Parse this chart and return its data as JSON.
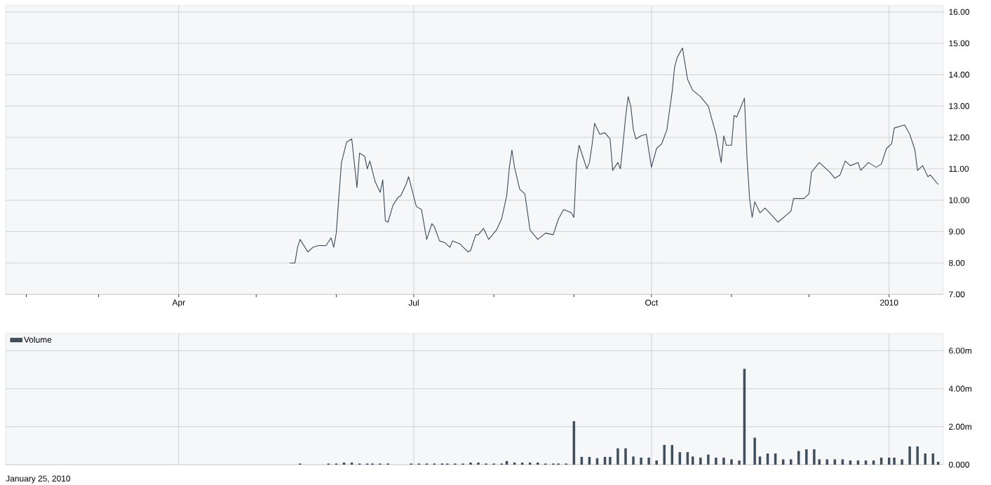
{
  "chart_data": [
    {
      "type": "line",
      "color": "#3b4a5a",
      "grid": true,
      "xlim": [
        "2009-01-24",
        "2010-01-22"
      ],
      "ylim": [
        7,
        16.2
      ],
      "xticks": [
        {
          "value": "2009-02",
          "label": null
        },
        {
          "value": "2009-03",
          "label": null
        },
        {
          "value": "2009-04",
          "label": "Apr"
        },
        {
          "value": "2009-05",
          "label": null
        },
        {
          "value": "2009-06",
          "label": null
        },
        {
          "value": "2009-07",
          "label": "Jul"
        },
        {
          "value": "2009-08",
          "label": null
        },
        {
          "value": "2009-09",
          "label": null
        },
        {
          "value": "2009-10",
          "label": "Oct"
        },
        {
          "value": "2009-11",
          "label": null
        },
        {
          "value": "2009-12",
          "label": null
        },
        {
          "value": "2010-01",
          "label": "2010"
        }
      ],
      "yticks": [
        {
          "value": 7,
          "label": "7.00"
        },
        {
          "value": 8,
          "label": "8.00"
        },
        {
          "value": 9,
          "label": "9.00"
        },
        {
          "value": 10,
          "label": "10.00"
        },
        {
          "value": 11,
          "label": "11.00"
        },
        {
          "value": 12,
          "label": "12.00"
        },
        {
          "value": 13,
          "label": "13.00"
        },
        {
          "value": 14,
          "label": "14.00"
        },
        {
          "value": 15,
          "label": "15.00"
        },
        {
          "value": 16,
          "label": "16.00"
        }
      ],
      "x": [
        "2009-05-14",
        "2009-05-16",
        "2009-05-17",
        "2009-05-18",
        "2009-05-21",
        "2009-05-23",
        "2009-05-25",
        "2009-05-28",
        "2009-05-30",
        "2009-05-31",
        "2009-06-01",
        "2009-06-02",
        "2009-06-03",
        "2009-06-05",
        "2009-06-06",
        "2009-06-07",
        "2009-06-09",
        "2009-06-10",
        "2009-06-12",
        "2009-06-13",
        "2009-06-14",
        "2009-06-16",
        "2009-06-18",
        "2009-06-19",
        "2009-06-20",
        "2009-06-21",
        "2009-06-23",
        "2009-06-25",
        "2009-06-26",
        "2009-06-28",
        "2009-06-29",
        "2009-07-02",
        "2009-07-04",
        "2009-07-06",
        "2009-07-08",
        "2009-07-09",
        "2009-07-11",
        "2009-07-13",
        "2009-07-15",
        "2009-07-16",
        "2009-07-19",
        "2009-07-22",
        "2009-07-23",
        "2009-07-25",
        "2009-07-26",
        "2009-07-28",
        "2009-07-30",
        "2009-08-02",
        "2009-08-04",
        "2009-08-06",
        "2009-08-07",
        "2009-08-08",
        "2009-08-09",
        "2009-08-11",
        "2009-08-13",
        "2009-08-15",
        "2009-08-16",
        "2009-08-18",
        "2009-08-21",
        "2009-08-24",
        "2009-08-26",
        "2009-08-28",
        "2009-08-31",
        "2009-09-01",
        "2009-09-02",
        "2009-09-03",
        "2009-09-04",
        "2009-09-06",
        "2009-09-07",
        "2009-09-08",
        "2009-09-09",
        "2009-09-11",
        "2009-09-13",
        "2009-09-15",
        "2009-09-16",
        "2009-09-18",
        "2009-09-19",
        "2009-09-20",
        "2009-09-21",
        "2009-09-22",
        "2009-09-23",
        "2009-09-24",
        "2009-09-25",
        "2009-09-27",
        "2009-09-29",
        "2009-10-01",
        "2009-10-03",
        "2009-10-05",
        "2009-10-07",
        "2009-10-09",
        "2009-10-10",
        "2009-10-11",
        "2009-10-13",
        "2009-10-15",
        "2009-10-17",
        "2009-10-20",
        "2009-10-23",
        "2009-10-26",
        "2009-10-28",
        "2009-10-29",
        "2009-10-30",
        "2009-11-01",
        "2009-11-02",
        "2009-11-03",
        "2009-11-05",
        "2009-11-06",
        "2009-11-07",
        "2009-11-08",
        "2009-11-09",
        "2009-11-10",
        "2009-11-12",
        "2009-11-14",
        "2009-11-19",
        "2009-11-24",
        "2009-11-25",
        "2009-11-29",
        "2009-12-01",
        "2009-12-02",
        "2009-12-05",
        "2009-12-09",
        "2009-12-11",
        "2009-12-13",
        "2009-12-15",
        "2009-12-17",
        "2009-12-20",
        "2009-12-21",
        "2009-12-24",
        "2009-12-27",
        "2009-12-29",
        "2009-12-31",
        "2010-01-02",
        "2010-01-03",
        "2010-01-07",
        "2010-01-09",
        "2010-01-11",
        "2010-01-12",
        "2010-01-14",
        "2010-01-16",
        "2010-01-17",
        "2010-01-20"
      ],
      "values": [
        8.0,
        8.0,
        8.5,
        8.75,
        8.35,
        8.5,
        8.55,
        8.55,
        8.8,
        8.5,
        8.95,
        10.1,
        11.2,
        11.85,
        11.9,
        11.95,
        10.4,
        11.5,
        11.4,
        11.0,
        11.25,
        10.6,
        10.25,
        10.65,
        9.35,
        9.3,
        9.85,
        10.1,
        10.15,
        10.5,
        10.75,
        9.8,
        9.7,
        8.75,
        9.25,
        9.15,
        8.7,
        8.65,
        8.5,
        8.7,
        8.6,
        8.35,
        8.4,
        8.9,
        8.9,
        9.1,
        8.75,
        9.05,
        9.4,
        10.15,
        11.05,
        11.6,
        11.05,
        10.35,
        10.2,
        9.05,
        8.95,
        8.75,
        8.95,
        8.9,
        9.4,
        9.7,
        9.6,
        9.45,
        11.2,
        11.75,
        11.5,
        11.0,
        11.2,
        11.75,
        12.45,
        12.1,
        12.15,
        11.95,
        10.95,
        11.2,
        11.0,
        11.8,
        12.65,
        13.3,
        13.0,
        12.25,
        11.95,
        12.05,
        12.1,
        11.05,
        11.65,
        11.8,
        12.25,
        13.45,
        14.25,
        14.55,
        14.85,
        13.85,
        13.5,
        13.3,
        13.0,
        12.1,
        11.2,
        12.05,
        11.75,
        11.75,
        12.7,
        12.65,
        13.05,
        13.25,
        11.35,
        10.05,
        9.45,
        9.95,
        9.6,
        9.75,
        9.3,
        9.65,
        10.05,
        10.05,
        10.2,
        10.9,
        11.2,
        10.9,
        10.7,
        10.8,
        11.25,
        11.1,
        11.2,
        10.95,
        11.2,
        11.05,
        11.15,
        11.65,
        11.8,
        12.3,
        12.4,
        12.1,
        11.6,
        10.95,
        11.1,
        10.75,
        10.8,
        10.5
      ]
    },
    {
      "type": "bar",
      "grid": true,
      "legend": "top left",
      "tick_labels": "y",
      "xlim": [
        "2009-01-24",
        "2010-01-22"
      ],
      "ylim": [
        0,
        6.9
      ],
      "xticks": [
        {
          "value": "2009-04",
          "label": null
        },
        {
          "value": "2009-07",
          "label": null
        },
        {
          "value": "2009-10",
          "label": null
        },
        {
          "value": "2010-01",
          "label": null
        }
      ],
      "yticks": [
        {
          "value": 0,
          "label": "0.000"
        },
        {
          "value": 2,
          "label": "2.00m"
        },
        {
          "value": 4,
          "label": "4.00m"
        },
        {
          "value": 6,
          "label": "6.00m"
        }
      ],
      "annotations": [
        "January 25, 2010"
      ],
      "x": [
        "2009-05-18",
        "2009-05-29",
        "2009-06-01",
        "2009-06-04",
        "2009-06-07",
        "2009-06-10",
        "2009-06-13",
        "2009-06-15",
        "2009-06-18",
        "2009-06-21",
        "2009-06-30",
        "2009-07-03",
        "2009-07-06",
        "2009-07-09",
        "2009-07-12",
        "2009-07-14",
        "2009-07-17",
        "2009-07-20",
        "2009-07-23",
        "2009-07-26",
        "2009-07-29",
        "2009-08-01",
        "2009-08-04",
        "2009-08-06",
        "2009-08-09",
        "2009-08-12",
        "2009-08-15",
        "2009-08-18",
        "2009-08-21",
        "2009-08-24",
        "2009-08-26",
        "2009-08-29",
        "2009-09-01",
        "2009-09-04",
        "2009-09-07",
        "2009-09-10",
        "2009-09-13",
        "2009-09-15",
        "2009-09-18",
        "2009-09-21",
        "2009-09-24",
        "2009-09-27",
        "2009-09-30",
        "2009-10-03",
        "2009-10-06",
        "2009-10-09",
        "2009-10-12",
        "2009-10-15",
        "2009-10-17",
        "2009-10-20",
        "2009-10-23",
        "2009-10-26",
        "2009-10-29",
        "2009-11-01",
        "2009-11-04",
        "2009-11-06",
        "2009-11-10",
        "2009-11-12",
        "2009-11-15",
        "2009-11-18",
        "2009-11-21",
        "2009-11-24",
        "2009-11-27",
        "2009-11-30",
        "2009-12-03",
        "2009-12-05",
        "2009-12-08",
        "2009-12-11",
        "2009-12-14",
        "2009-12-17",
        "2009-12-20",
        "2009-12-23",
        "2009-12-26",
        "2009-12-29",
        "2010-01-01",
        "2010-01-03",
        "2010-01-06",
        "2010-01-09",
        "2010-01-12",
        "2010-01-15",
        "2010-01-18",
        "2010-01-20"
      ],
      "series": [
        {
          "name": "Volume",
          "color": "#3f4f5e",
          "values": [
            0.06,
            0.06,
            0.06,
            0.11,
            0.11,
            0.06,
            0.06,
            0.06,
            0.06,
            0.06,
            0.06,
            0.06,
            0.06,
            0.06,
            0.06,
            0.06,
            0.06,
            0.06,
            0.11,
            0.11,
            0.06,
            0.06,
            0.06,
            0.19,
            0.11,
            0.11,
            0.11,
            0.11,
            0.06,
            0.06,
            0.06,
            0.06,
            2.29,
            0.41,
            0.41,
            0.34,
            0.41,
            0.41,
            0.86,
            0.86,
            0.43,
            0.37,
            0.37,
            0.22,
            1.04,
            1.04,
            0.66,
            0.66,
            0.43,
            0.37,
            0.53,
            0.37,
            0.37,
            0.28,
            0.22,
            5.05,
            1.42,
            0.43,
            0.59,
            0.59,
            0.28,
            0.28,
            0.72,
            0.81,
            0.81,
            0.28,
            0.28,
            0.28,
            0.28,
            0.22,
            0.22,
            0.22,
            0.22,
            0.37,
            0.37,
            0.37,
            0.28,
            0.96,
            0.96,
            0.59,
            0.59,
            0.15
          ]
        }
      ]
    }
  ]
}
